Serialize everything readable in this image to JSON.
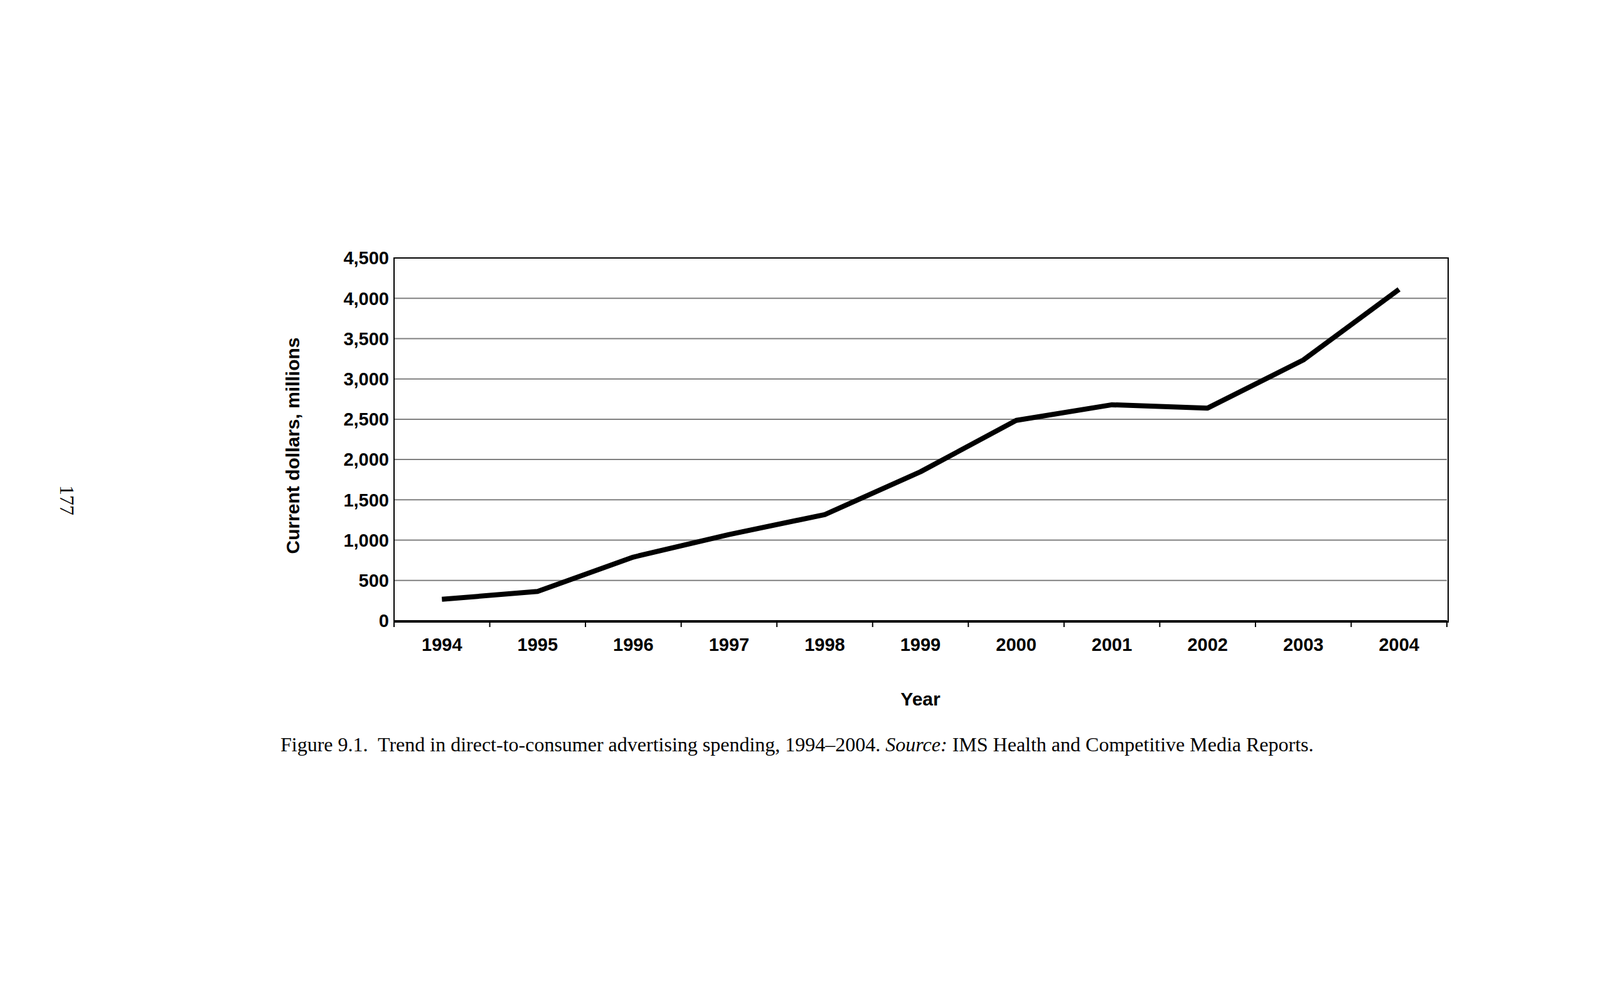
{
  "chart_data": {
    "type": "line",
    "x_label": "Year",
    "y_label": "Current dollars, millions",
    "categories": [
      "1994",
      "1995",
      "1996",
      "1997",
      "1998",
      "1999",
      "2000",
      "2001",
      "2002",
      "2003",
      "2004"
    ],
    "values": [
      266,
      364,
      790,
      1069,
      1317,
      1848,
      2485,
      2679,
      2638,
      3235,
      4110
    ],
    "color": "#000000",
    "ylim": [
      0,
      4500
    ],
    "yticks": [
      0,
      500,
      {
        "value": 1000,
        "label": "1,000"
      },
      {
        "value": 1500,
        "label": "1,500"
      },
      {
        "value": 2000,
        "label": "2,000"
      },
      {
        "value": 2500,
        "label": "2,500"
      },
      {
        "value": 3000,
        "label": "3,000"
      },
      {
        "value": 3500,
        "label": "3,500"
      },
      {
        "value": 4000,
        "label": "4,000"
      },
      {
        "value": 4500,
        "label": "4,500"
      }
    ],
    "grid": true,
    "caption": "Figure 9.1.  Trend in direct-to-consumer advertising spending, 1994–2004.",
    "source_label": "Source:",
    "source": "IMS Health and Competitive Media Reports.",
    "page_number": "177"
  }
}
